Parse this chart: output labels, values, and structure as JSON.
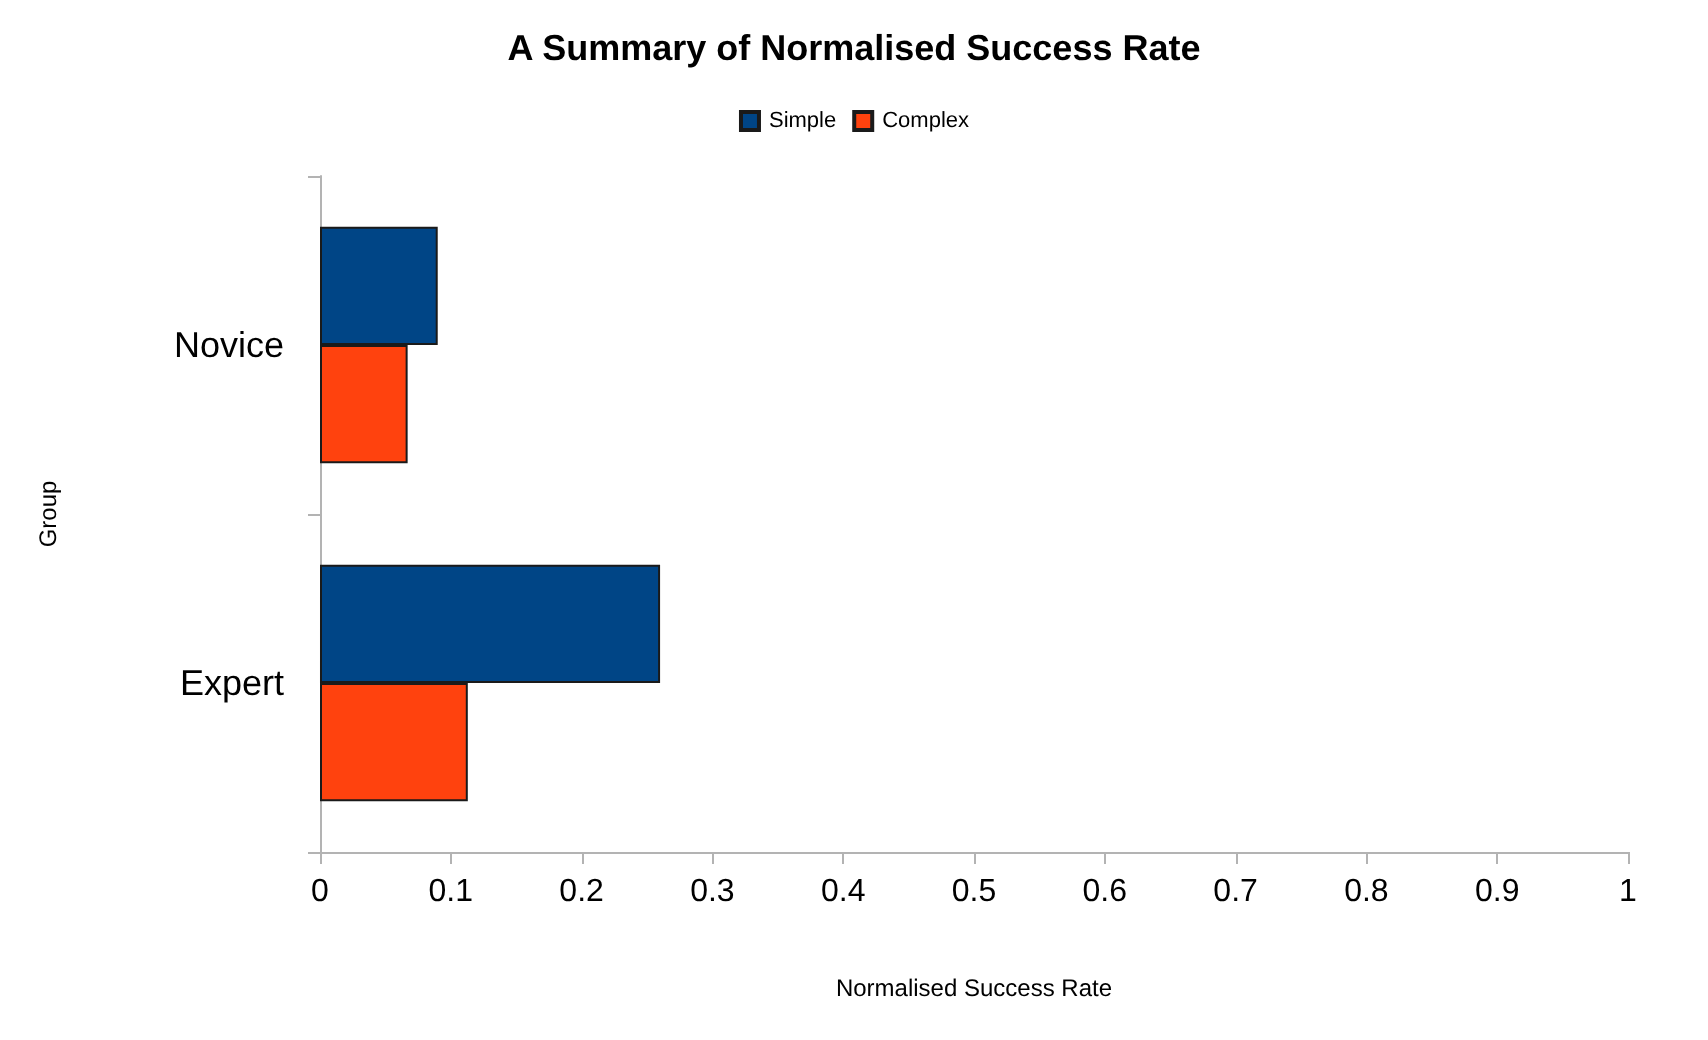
{
  "chart_data": {
    "type": "bar",
    "orientation": "horizontal",
    "title": "A Summary of Normalised Success Rate",
    "xlabel": "Normalised Success Rate",
    "ylabel": "Group",
    "categories": [
      "Novice",
      "Expert"
    ],
    "series": [
      {
        "name": "Simple",
        "color": "#004586",
        "values": [
          0.09,
          0.26
        ]
      },
      {
        "name": "Complex",
        "color": "#ff420e",
        "values": [
          0.067,
          0.113
        ]
      }
    ],
    "xlim": [
      0,
      1
    ],
    "xticks": [
      0,
      0.1,
      0.2,
      0.3,
      0.4,
      0.5,
      0.6,
      0.7,
      0.8,
      0.9,
      1
    ],
    "grid": false,
    "legend": "top"
  }
}
